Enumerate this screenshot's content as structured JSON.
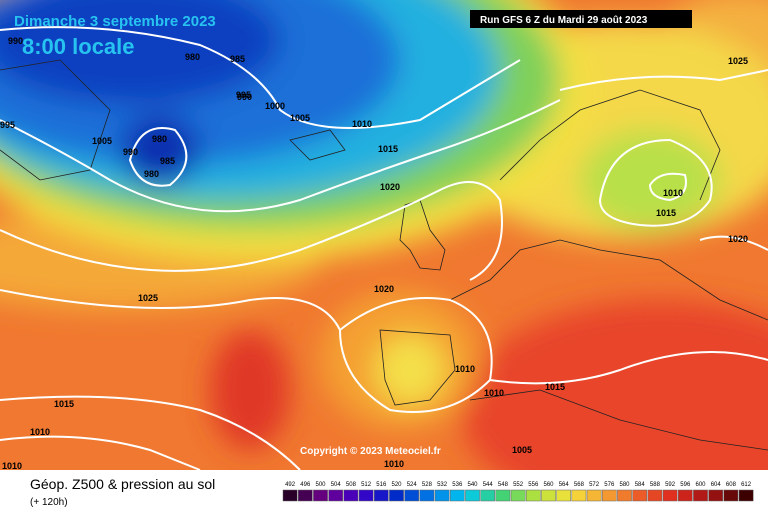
{
  "header": {
    "date": "Dimanche 3 septembre 2023",
    "time": "8:00 locale",
    "run": "Run GFS 6 Z du Mardi 29 août 2023"
  },
  "copyright": "Copyright © 2023 Meteociel.fr",
  "footer": {
    "title": "Géop. Z500 & pression au sol",
    "lead": "(+ 120h)"
  },
  "scale": [
    492,
    496,
    500,
    504,
    508,
    512,
    516,
    520,
    524,
    528,
    532,
    536,
    540,
    544,
    548,
    552,
    556,
    560,
    564,
    568,
    572,
    576,
    580,
    584,
    588,
    592,
    596,
    600,
    604,
    608,
    612
  ],
  "isobar_labels": [
    990,
    980,
    985,
    990,
    995,
    1000,
    1005,
    1010,
    1015,
    1020,
    995,
    1005,
    980,
    990,
    985,
    980,
    1025,
    1010,
    1015,
    1020,
    1020,
    1025,
    1010,
    1010,
    1015,
    1015,
    1010,
    1010,
    1010,
    1005
  ]
}
